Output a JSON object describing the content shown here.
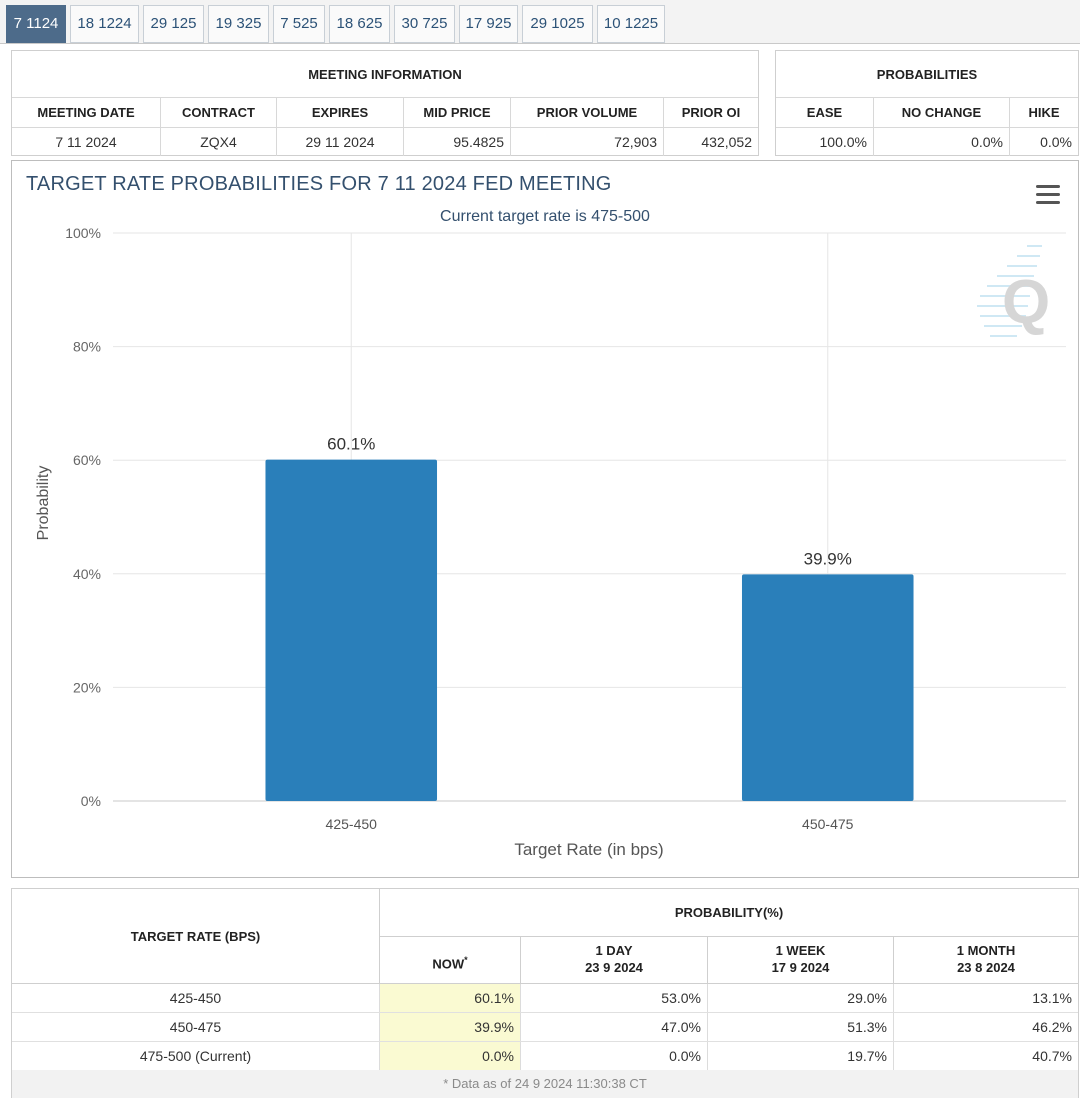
{
  "tabs": [
    "7 1124",
    "18 1224",
    "29 125",
    "19 325",
    "7 525",
    "18 625",
    "30 725",
    "17 925",
    "29 1025",
    "10 1225"
  ],
  "meeting_info": {
    "title": "MEETING INFORMATION",
    "headers": [
      "MEETING DATE",
      "CONTRACT",
      "EXPIRES",
      "MID PRICE",
      "PRIOR VOLUME",
      "PRIOR OI"
    ],
    "values": [
      "7 11 2024",
      "ZQX4",
      "29 11 2024",
      "95.4825",
      "72,903",
      "432,052"
    ]
  },
  "probabilities": {
    "title": "PROBABILITIES",
    "headers": [
      "EASE",
      "NO CHANGE",
      "HIKE"
    ],
    "values": [
      "100.0%",
      "0.0%",
      "0.0%"
    ]
  },
  "chart_data": {
    "type": "bar",
    "title": "TARGET RATE PROBABILITIES FOR 7 11 2024 FED MEETING",
    "subtitle": "Current target rate is 475-500",
    "xlabel": "Target Rate (in bps)",
    "ylabel": "Probability",
    "categories": [
      "425-450",
      "450-475"
    ],
    "values": [
      60.1,
      39.9
    ],
    "data_labels": [
      "60.1%",
      "39.9%"
    ],
    "ylim": [
      0,
      100
    ],
    "yticks": [
      0,
      20,
      40,
      60,
      80,
      100
    ],
    "ytick_labels": [
      "0%",
      "20%",
      "40%",
      "60%",
      "80%",
      "100%"
    ],
    "bar_color": "#2a7fba",
    "grid": true,
    "legend": "none"
  },
  "prob_table": {
    "left_header": "TARGET RATE (BPS)",
    "group_header": "PROBABILITY(%)",
    "columns": [
      {
        "l1": "NOW",
        "l2": ""
      },
      {
        "l1": "1 DAY",
        "l2": "23 9 2024"
      },
      {
        "l1": "1 WEEK",
        "l2": "17 9 2024"
      },
      {
        "l1": "1 MONTH",
        "l2": "23 8 2024"
      }
    ],
    "now_marker": "*",
    "rows": [
      {
        "rate": "425-450",
        "vals": [
          "60.1%",
          "53.0%",
          "29.0%",
          "13.1%"
        ]
      },
      {
        "rate": "450-475",
        "vals": [
          "39.9%",
          "47.0%",
          "51.3%",
          "46.2%"
        ]
      },
      {
        "rate": "475-500 (Current)",
        "vals": [
          "0.0%",
          "0.0%",
          "19.7%",
          "40.7%"
        ]
      }
    ],
    "footer": "* Data as of 24 9 2024 11:30:38 CT"
  }
}
